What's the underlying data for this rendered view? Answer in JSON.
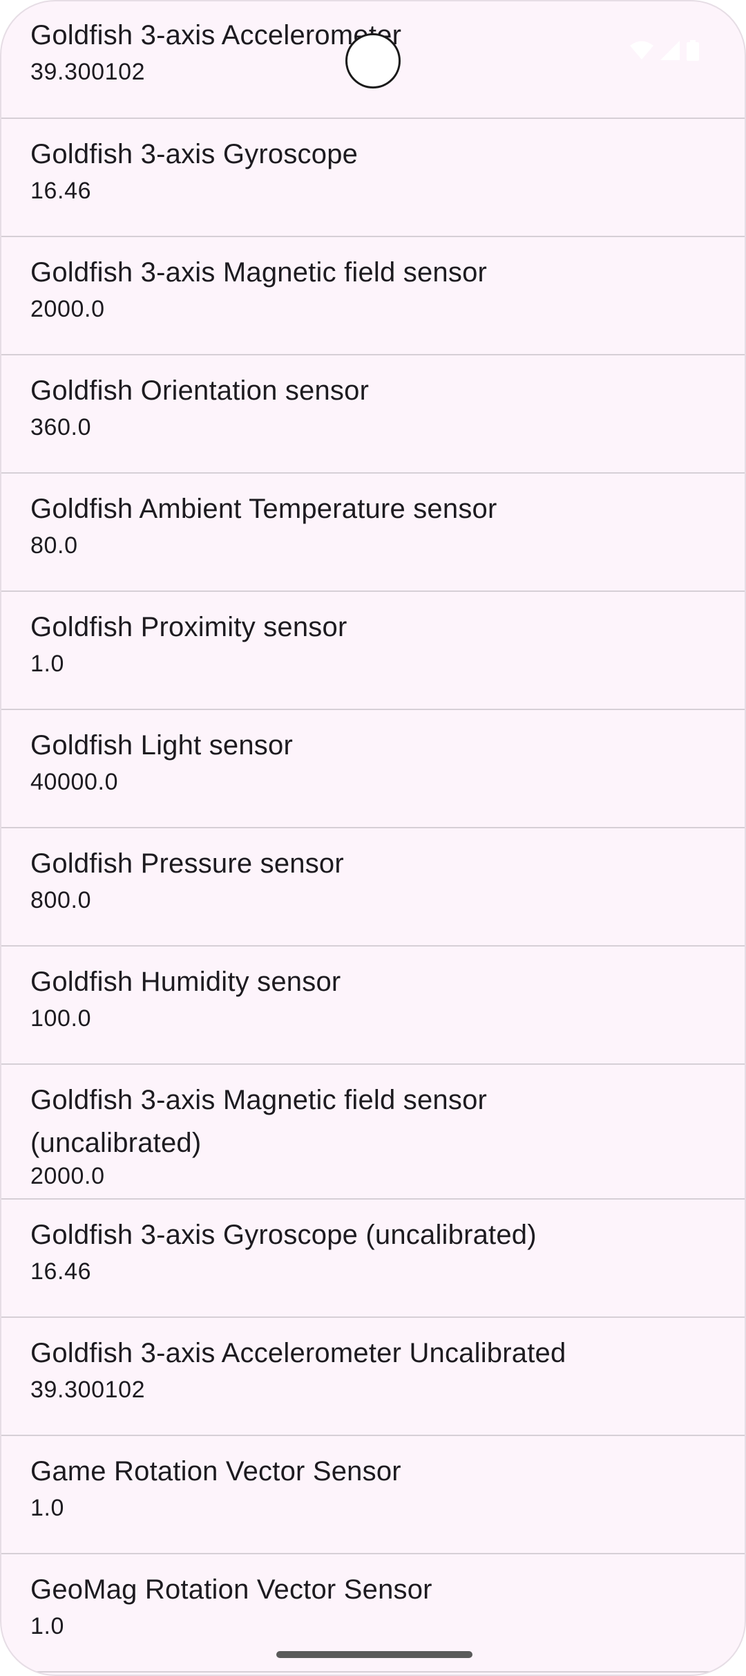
{
  "status_bar": {
    "icons": [
      "wifi-icon",
      "cellular-signal-icon",
      "battery-icon"
    ]
  },
  "sensors": [
    {
      "name": "Goldfish 3-axis Accelerometer",
      "value": "39.300102"
    },
    {
      "name": "Goldfish 3-axis Gyroscope",
      "value": "16.46"
    },
    {
      "name": "Goldfish 3-axis Magnetic field sensor",
      "value": "2000.0"
    },
    {
      "name": "Goldfish Orientation sensor",
      "value": "360.0"
    },
    {
      "name": "Goldfish Ambient Temperature sensor",
      "value": "80.0"
    },
    {
      "name": "Goldfish Proximity sensor",
      "value": "1.0"
    },
    {
      "name": "Goldfish Light sensor",
      "value": "40000.0"
    },
    {
      "name": "Goldfish Pressure sensor",
      "value": "800.0"
    },
    {
      "name": "Goldfish Humidity sensor",
      "value": "100.0"
    },
    {
      "name": "Goldfish 3-axis Magnetic field sensor (uncalibrated)",
      "value": "2000.0"
    },
    {
      "name": "Goldfish 3-axis Gyroscope (uncalibrated)",
      "value": "16.46"
    },
    {
      "name": "Goldfish 3-axis Accelerometer Uncalibrated",
      "value": "39.300102"
    },
    {
      "name": "Game Rotation Vector Sensor",
      "value": "1.0"
    },
    {
      "name": "GeoMag Rotation Vector Sensor",
      "value": "1.0"
    }
  ]
}
